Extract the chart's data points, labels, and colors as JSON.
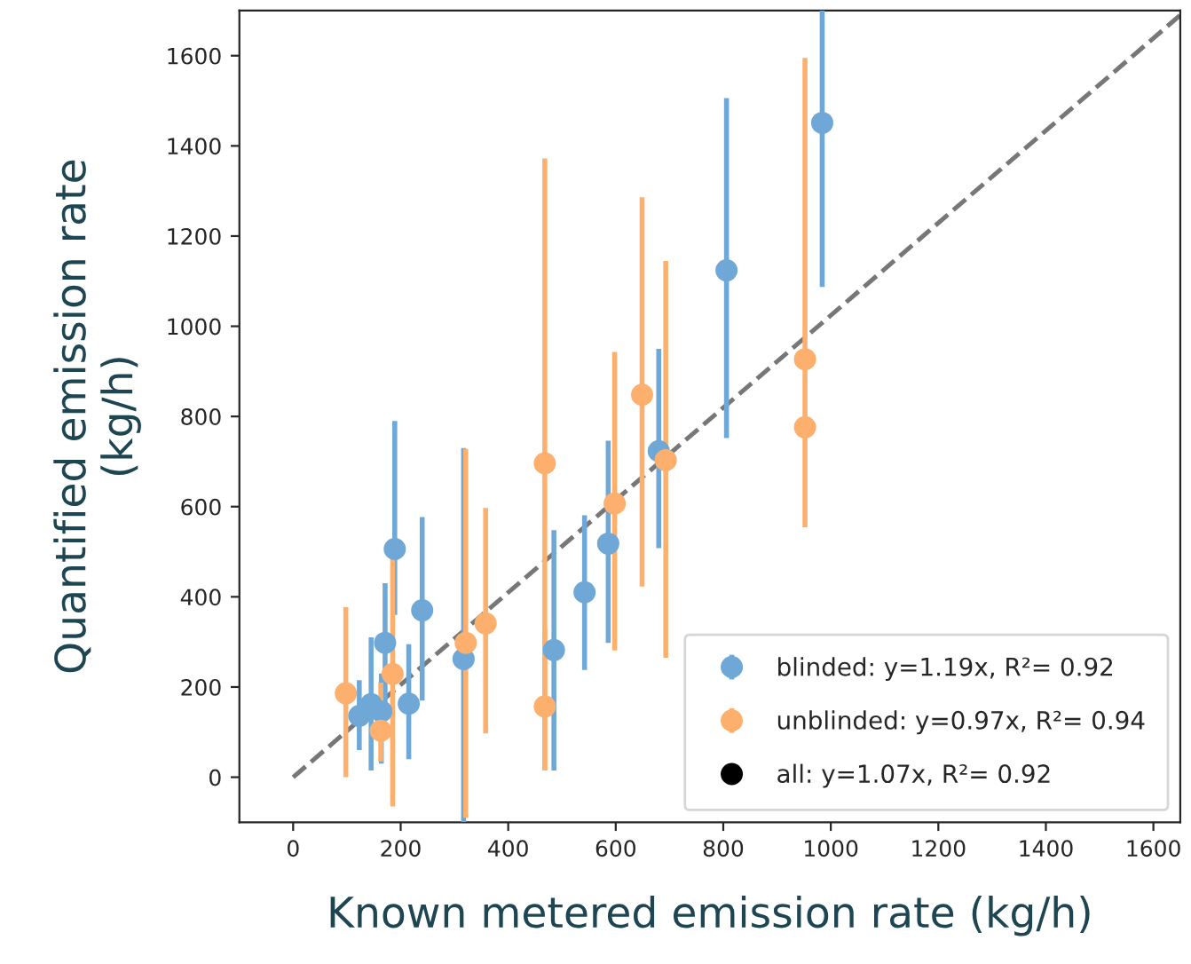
{
  "chart_data": {
    "type": "scatter",
    "xlabel": "Known metered emission rate (kg/h)",
    "ylabel": "Quantified emission rate\n(kg/h)",
    "xlim": [
      -100,
      1650
    ],
    "ylim": [
      -100,
      1700
    ],
    "xticks": [
      0,
      200,
      400,
      600,
      800,
      1000,
      1200,
      1400,
      1600
    ],
    "yticks": [
      0,
      200,
      400,
      600,
      800,
      1000,
      1200,
      1400,
      1600
    ],
    "grid": false,
    "legend": "bottom right",
    "marker": "circle",
    "series": [
      {
        "name": "blinded: y=1.19x, R²= 0.92",
        "color": "#6fa8d6",
        "x": [
          123,
          145,
          164,
          171,
          189,
          215,
          240,
          317,
          485,
          542,
          586,
          680,
          806,
          984
        ],
        "values": [
          136,
          162,
          146,
          298,
          506,
          163,
          370,
          262,
          282,
          410,
          518,
          723,
          1124,
          1451
        ],
        "errors": [
          [
            60,
            215
          ],
          [
            15,
            310
          ],
          [
            30,
            230
          ],
          [
            130,
            430
          ],
          [
            360,
            790
          ],
          [
            40,
            295
          ],
          [
            170,
            577
          ],
          [
            -100,
            730
          ],
          [
            15,
            548
          ],
          [
            238,
            581
          ],
          [
            298,
            746
          ],
          [
            508,
            950
          ],
          [
            752,
            1506
          ],
          [
            1087,
            1700
          ]
        ]
      },
      {
        "name": "unblinded: y=0.97x, R²= 0.94",
        "color": "#fdb06e",
        "x": [
          98,
          163,
          185,
          321,
          358,
          468,
          468,
          598,
          649,
          693,
          952,
          952
        ],
        "values": [
          186,
          103,
          229,
          298,
          341,
          696,
          157,
          607,
          848,
          703,
          927,
          776
        ],
        "errors": [
          [
            0,
            377
          ],
          [
            35,
            210
          ],
          [
            -65,
            490
          ],
          [
            -90,
            728
          ],
          [
            97,
            597
          ],
          [
            15,
            1372
          ],
          [
            15,
            330
          ],
          [
            281,
            943
          ],
          [
            423,
            1286
          ],
          [
            265,
            1145
          ],
          [
            554,
            1595
          ],
          null
        ]
      },
      {
        "name": "all: y=1.07x, R²= 0.92",
        "color": "#000000"
      },
      {
        "type": "line",
        "color": "#777777",
        "line_style": "dashed",
        "marker": "none",
        "x": [
          0,
          1650
        ],
        "values": [
          0,
          1690
        ]
      }
    ]
  }
}
